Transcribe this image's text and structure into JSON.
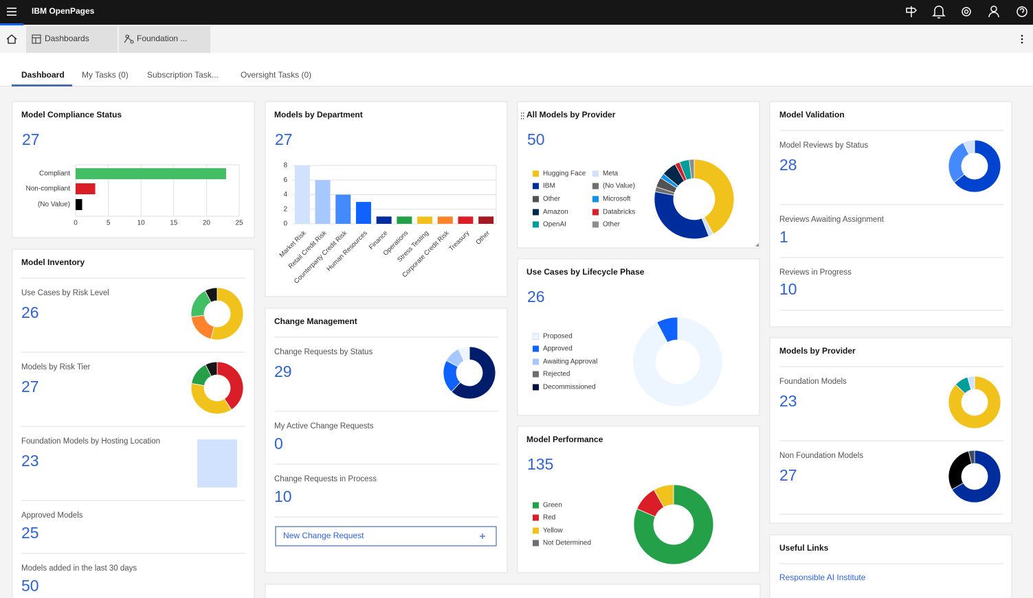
{
  "header": {
    "product": "IBM OpenPages"
  },
  "breadcrumbs": [
    "Dashboards",
    "Foundation ..."
  ],
  "tabs": [
    "Dashboard",
    "My Tasks (0)",
    "Subscription Task...",
    "Oversight Tasks (0)"
  ],
  "compliance": {
    "title": "Model Compliance Status",
    "total": 27,
    "chart": {
      "type": "hbar",
      "categories": [
        "Compliant",
        "Non-compliant",
        "(No Value)"
      ],
      "values": [
        23,
        3,
        1
      ],
      "colors": [
        "#42be65",
        "#da1e28",
        "#000000"
      ],
      "xlim": [
        0,
        25
      ],
      "xticks": [
        0,
        5,
        10,
        15,
        20,
        25
      ],
      "grid": true
    }
  },
  "department": {
    "title": "Models by Department",
    "total": 27,
    "chart": {
      "type": "bar",
      "categories": [
        "Market Risk",
        "Retail Credit Risk",
        "Counterparty Credit Risk",
        "Human Resources",
        "Finance",
        "Operations",
        "Stress Testing",
        "Corporate Credit Risk",
        "Treasury",
        "Other"
      ],
      "values": [
        8,
        6,
        4,
        3,
        1,
        1,
        1,
        1,
        1,
        1
      ],
      "colors": [
        "#d0e2ff",
        "#a6c8ff",
        "#4589ff",
        "#0f62fe",
        "#002d9c",
        "#24a148",
        "#f1c21b",
        "#ff832b",
        "#da1e28",
        "#a2191f"
      ],
      "ylim": [
        0,
        8
      ],
      "yticks": [
        0,
        2,
        4,
        6,
        8
      ],
      "grid": true
    }
  },
  "provider_all": {
    "title": "All Models by Provider",
    "total": 50,
    "chart": {
      "type": "donut",
      "categories": [
        "Hugging Face",
        "Meta",
        "IBM",
        "(No Value)",
        "Other",
        "Microsoft",
        "Amazon",
        "Databricks",
        "OpenAI",
        "Other"
      ],
      "values": [
        21,
        1,
        17,
        1,
        2,
        1,
        3,
        1,
        2,
        1
      ],
      "colors": [
        "#f1c21b",
        "#d0e2ff",
        "#002d9c",
        "#6f6f6f",
        "#525252",
        "#1192e8",
        "#012749",
        "#da1e28",
        "#009d9a",
        "#8d8d8d"
      ]
    }
  },
  "lifecycle": {
    "title": "Use Cases by Lifecycle Phase",
    "total": 26,
    "chart": {
      "type": "donut",
      "categories": [
        "Proposed",
        "Approved",
        "Awaiting Approval",
        "Rejected",
        "Decommissioned"
      ],
      "values": [
        24,
        2,
        0,
        0,
        0
      ],
      "colors": [
        "#edf5ff",
        "#0f62fe",
        "#a6c8ff",
        "#6f6f6f",
        "#001141"
      ]
    }
  },
  "performance": {
    "title": "Model Performance",
    "total": 135,
    "chart": {
      "type": "donut",
      "categories": [
        "Green",
        "Red",
        "Yellow",
        "Not Determined"
      ],
      "values": [
        110,
        14,
        11,
        0
      ],
      "colors": [
        "#24a148",
        "#da1e28",
        "#f1c21b",
        "#6f6f6f"
      ]
    }
  },
  "inventory": {
    "title": "Model Inventory",
    "items": [
      {
        "label": "Use Cases by Risk Level",
        "value": 26,
        "chart": {
          "type": "donut",
          "values": [
            14,
            5,
            5,
            2
          ],
          "colors": [
            "#f1c21b",
            "#ff832b",
            "#42be65",
            "#161616"
          ]
        }
      },
      {
        "label": "Models by Risk Tier",
        "value": 27,
        "chart": {
          "type": "donut",
          "values": [
            11,
            10,
            4,
            2
          ],
          "colors": [
            "#da1e28",
            "#f1c21b",
            "#24a148",
            "#161616"
          ]
        }
      },
      {
        "label": "Foundation Models by Hosting Location",
        "value": 23,
        "chart": {
          "type": "treemap",
          "values": [
            23
          ],
          "colors": [
            "#d0e2ff"
          ]
        }
      },
      {
        "label": "Approved Models",
        "value": 25
      },
      {
        "label": "Models added in the last 30 days",
        "value": 50
      }
    ]
  },
  "change": {
    "title": "Change Management",
    "items": [
      {
        "label": "Change Requests by Status",
        "value": 29,
        "chart": {
          "type": "donut",
          "values": [
            18,
            6,
            3,
            2
          ],
          "colors": [
            "#001d6c",
            "#0f62fe",
            "#a6c8ff",
            "#edf5ff"
          ]
        }
      },
      {
        "label": "My Active Change Requests",
        "value": 0
      },
      {
        "label": "Change Requests in Process",
        "value": 10
      }
    ],
    "button": "New Change Request"
  },
  "validation": {
    "title": "Model Validation",
    "items": [
      {
        "label": "Model Reviews by Status",
        "value": 28,
        "chart": {
          "type": "donut",
          "values": [
            18,
            8,
            2
          ],
          "colors": [
            "#0043ce",
            "#4589ff",
            "#d0e2ff"
          ]
        }
      },
      {
        "label": "Reviews Awaiting Assignment",
        "value": 1
      },
      {
        "label": "Reviews in Progress",
        "value": 10
      }
    ]
  },
  "provider": {
    "title": "Models by Provider",
    "items": [
      {
        "label": "Foundation Models",
        "value": 23,
        "chart": {
          "type": "donut",
          "values": [
            20,
            2,
            1
          ],
          "colors": [
            "#f1c21b",
            "#009d9a",
            "#d0e2ff"
          ]
        }
      },
      {
        "label": "Non Foundation Models",
        "value": 27,
        "chart": {
          "type": "donut",
          "values": [
            18,
            8,
            1
          ],
          "colors": [
            "#002d9c",
            "#000000",
            "#3d4b5c"
          ]
        }
      }
    ]
  },
  "links": {
    "title": "Useful Links",
    "items": [
      "Responsible AI Institute"
    ]
  }
}
